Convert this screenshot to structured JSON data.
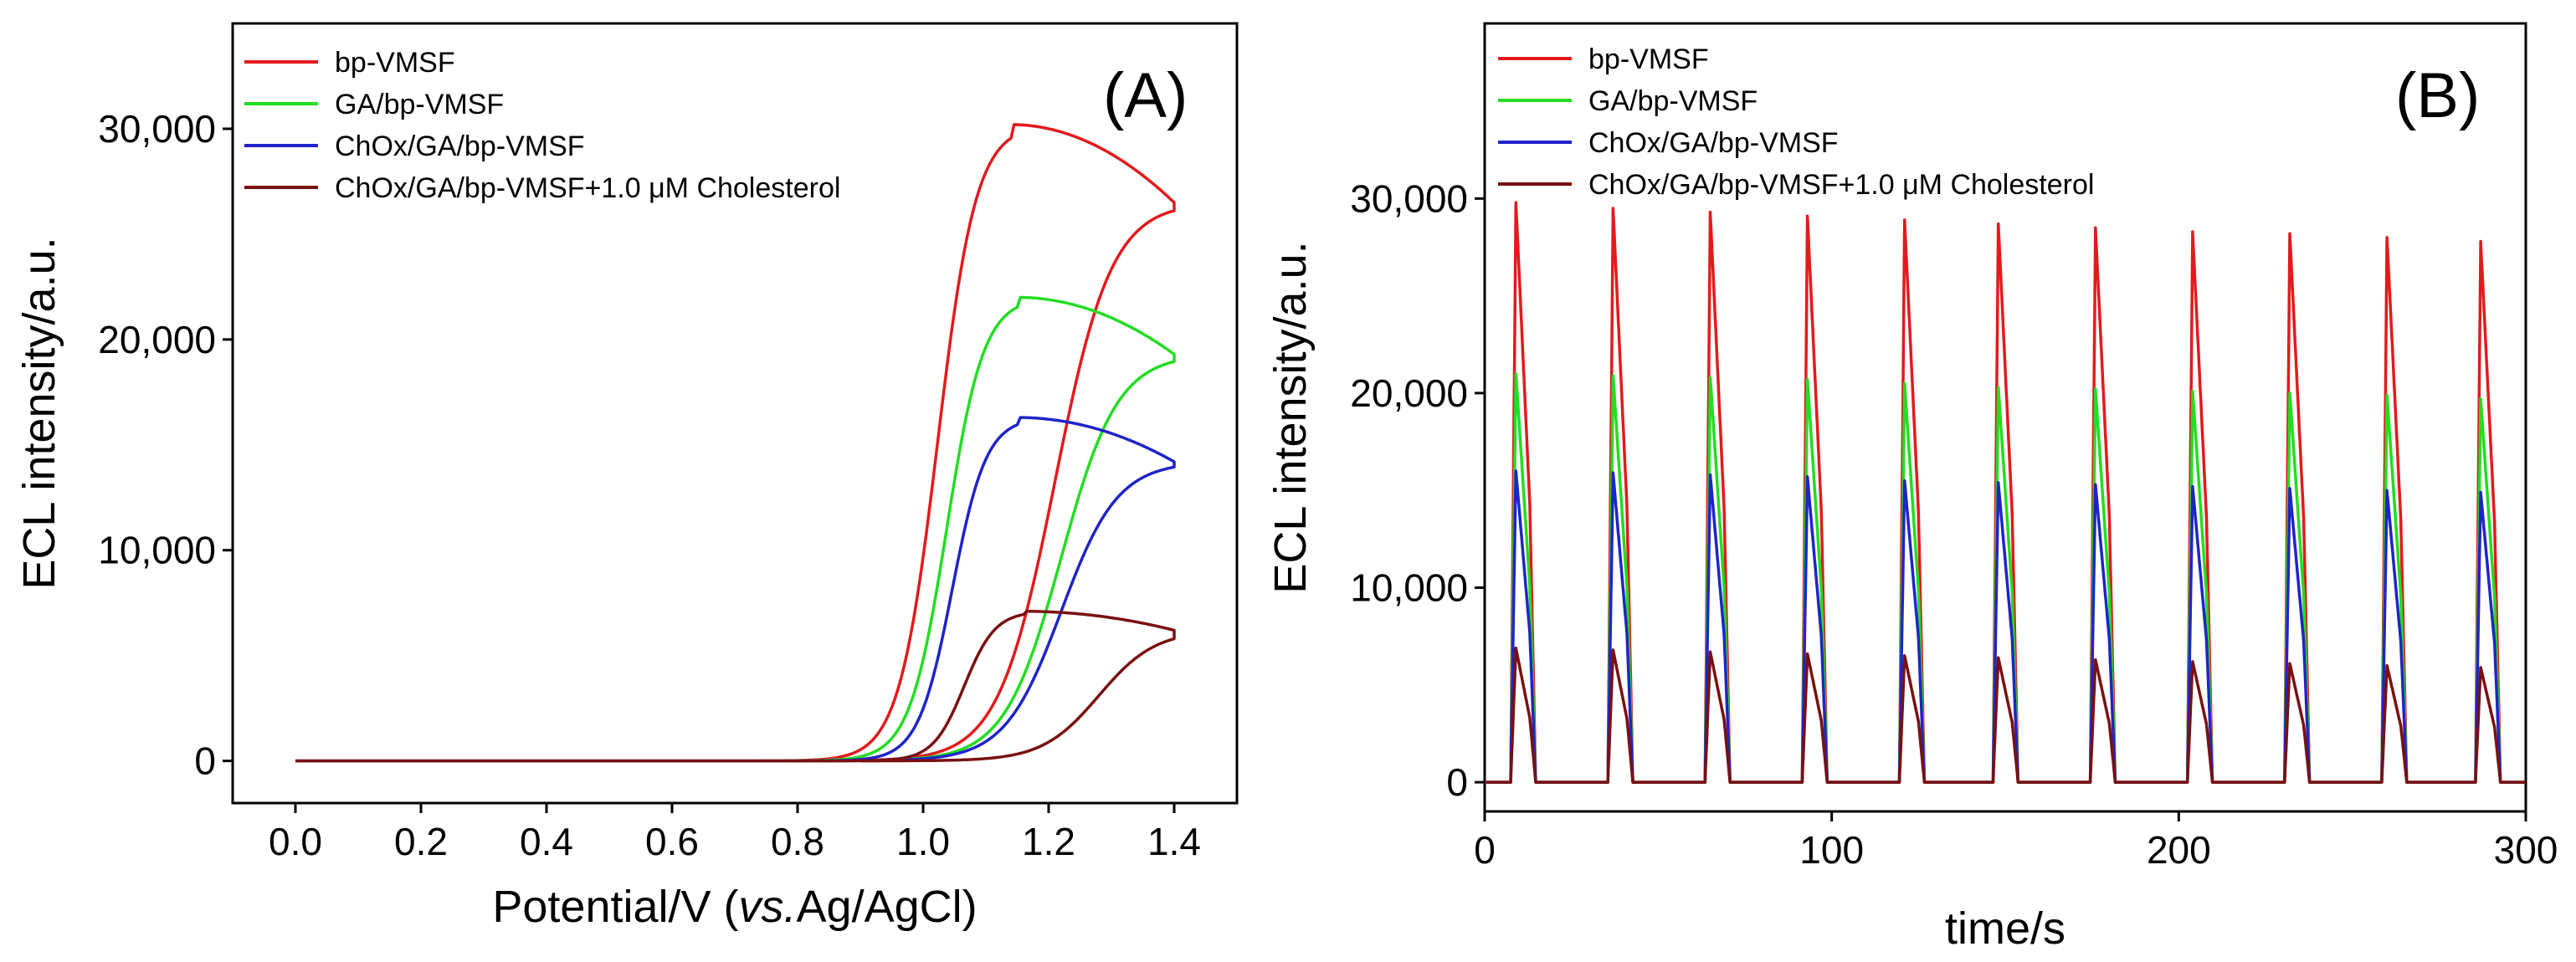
{
  "chart_data": [
    {
      "panel": "(A)",
      "type": "line",
      "xlabel_main": "Potential/V (",
      "xlabel_italic": "vs.",
      "xlabel_rest": "Ag/AgCl)",
      "ylabel": "ECL intensity/a.u.",
      "xlim": [
        -0.1,
        1.5
      ],
      "ylim": [
        -2000,
        35000
      ],
      "x_ticks": [
        0.0,
        0.2,
        0.4,
        0.6,
        0.8,
        1.0,
        1.2,
        1.4
      ],
      "x_tick_labels": [
        "0.0",
        "0.2",
        "0.4",
        "0.6",
        "0.8",
        "1.0",
        "1.2",
        "1.4"
      ],
      "y_ticks": [
        0,
        10000,
        20000,
        30000
      ],
      "y_tick_labels": [
        "0",
        "10,000",
        "20,000",
        "30,000"
      ],
      "legend_position": "top-left",
      "series": [
        {
          "name": "bp-VMSF",
          "color": "#e31a1c",
          "onset": 0.88,
          "peak_potential": 1.14,
          "peak": 30200,
          "end_value": 26500
        },
        {
          "name": "GA/bp-VMSF",
          "color": "#22dd22",
          "onset": 0.9,
          "peak_potential": 1.15,
          "peak": 22000,
          "end_value": 19300
        },
        {
          "name": "ChOx/GA/bp-VMSF",
          "color": "#1f24c8",
          "onset": 0.92,
          "peak_potential": 1.15,
          "peak": 16300,
          "end_value": 14200
        },
        {
          "name": "ChOx/GA/bp-VMSF+1.0 μM Cholesterol",
          "color": "#7a1010",
          "onset": 0.95,
          "peak_potential": 1.16,
          "peak": 7100,
          "end_value": 6200
        }
      ]
    },
    {
      "panel": "(B)",
      "type": "line",
      "xlabel": "time/s",
      "ylabel": "ECL intensity/a.u.",
      "xlim": [
        0,
        300
      ],
      "ylim": [
        -1500,
        39000
      ],
      "x_ticks": [
        0,
        100,
        200,
        300
      ],
      "x_tick_labels": [
        "0",
        "100",
        "200",
        "300"
      ],
      "y_ticks": [
        0,
        10000,
        20000,
        30000
      ],
      "y_tick_labels": [
        "0",
        "10,000",
        "20,000",
        "30,000"
      ],
      "legend_position": "top-left",
      "pulse_times": [
        9,
        37,
        65,
        93,
        121,
        148,
        176,
        204,
        232,
        260,
        287
      ],
      "series": [
        {
          "name": "bp-VMSF",
          "color": "#e31a1c",
          "peaks": [
            29800,
            29500,
            29300,
            29100,
            28900,
            28700,
            28500,
            28300,
            28200,
            28000,
            27800
          ]
        },
        {
          "name": "GA/bp-VMSF",
          "color": "#22dd22",
          "peaks": [
            21000,
            20900,
            20800,
            20700,
            20500,
            20300,
            20200,
            20100,
            20000,
            19900,
            19700
          ]
        },
        {
          "name": "ChOx/GA/bp-VMSF",
          "color": "#1f24c8",
          "peaks": [
            16000,
            15900,
            15800,
            15700,
            15500,
            15400,
            15300,
            15200,
            15100,
            15000,
            14900
          ]
        },
        {
          "name": "ChOx/GA/bp-VMSF+1.0 μM Cholesterol",
          "color": "#7a1010",
          "peaks": [
            6900,
            6800,
            6700,
            6600,
            6500,
            6400,
            6300,
            6200,
            6100,
            6000,
            5900
          ]
        }
      ]
    }
  ]
}
